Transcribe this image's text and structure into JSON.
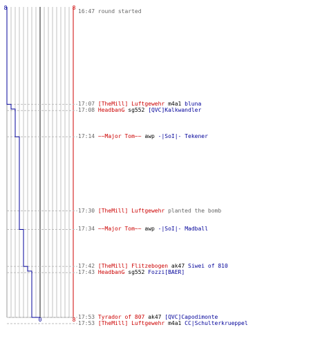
{
  "scoreboard": {
    "ct_label_top": "8",
    "t_label_top": "8",
    "ct_label_bottom": "0",
    "t_label_bottom": "8"
  },
  "colors": {
    "t_team": "#cc0000",
    "ct_team": "#000099",
    "grid": "#c0c0c0",
    "grid_mid": "#666666",
    "dashed": "#bbbbbb",
    "time": "#666666"
  },
  "ct_alive_steps": [
    {
      "time": "16:47",
      "alive": 8
    },
    {
      "time": "17:07",
      "alive": 7
    },
    {
      "time": "17:08",
      "alive": 6
    },
    {
      "time": "17:14",
      "alive": 5
    },
    {
      "time": "17:34",
      "alive": 4
    },
    {
      "time": "17:42",
      "alive": 3
    },
    {
      "time": "17:43",
      "alive": 2
    },
    {
      "time": "17:53",
      "alive": 0
    }
  ],
  "events": [
    {
      "time": "16:47",
      "text": "round started",
      "kind": "info"
    },
    {
      "time": "17:07",
      "killer": "[TheMill] Luftgewehr",
      "killer_team": "t",
      "weapon": "m4a1",
      "victim": "bluna",
      "victim_team": "ct"
    },
    {
      "time": "17:08",
      "killer": "HeadbanG",
      "killer_team": "t",
      "weapon": "sg552",
      "victim": "[QVC]Kalkwandler",
      "victim_team": "ct"
    },
    {
      "time": "17:14",
      "killer": "~~Major Tom~~",
      "killer_team": "t",
      "weapon": "awp",
      "victim": "-|SoI|- Tekener",
      "victim_team": "ct"
    },
    {
      "time": "17:30",
      "killer": "[TheMill] Luftgewehr",
      "killer_team": "t",
      "weapon": "planted the bomb",
      "kind": "bomb"
    },
    {
      "time": "17:34",
      "killer": "~~Major Tom~~",
      "killer_team": "t",
      "weapon": "awp",
      "victim": "-|SoI|- Madball",
      "victim_team": "ct"
    },
    {
      "time": "17:42",
      "killer": "[TheMill] Flitzebogen",
      "killer_team": "t",
      "weapon": "ak47",
      "victim": "Siwei of 810",
      "victim_team": "ct"
    },
    {
      "time": "17:43",
      "killer": "HeadbanG",
      "killer_team": "t",
      "weapon": "sg552",
      "victim": "Fozzi[BAER]",
      "victim_team": "ct"
    },
    {
      "time": "17:53",
      "killer": "Tyrador of 807",
      "killer_team": "t",
      "weapon": "ak47",
      "victim": "[QVC]Capodimonte",
      "victim_team": "ct"
    },
    {
      "time": "17:53",
      "killer": "[TheMill] Luftgewehr",
      "killer_team": "t",
      "weapon": "m4a1",
      "victim": "CC|Schulterkrueppel",
      "victim_team": "ct"
    }
  ]
}
